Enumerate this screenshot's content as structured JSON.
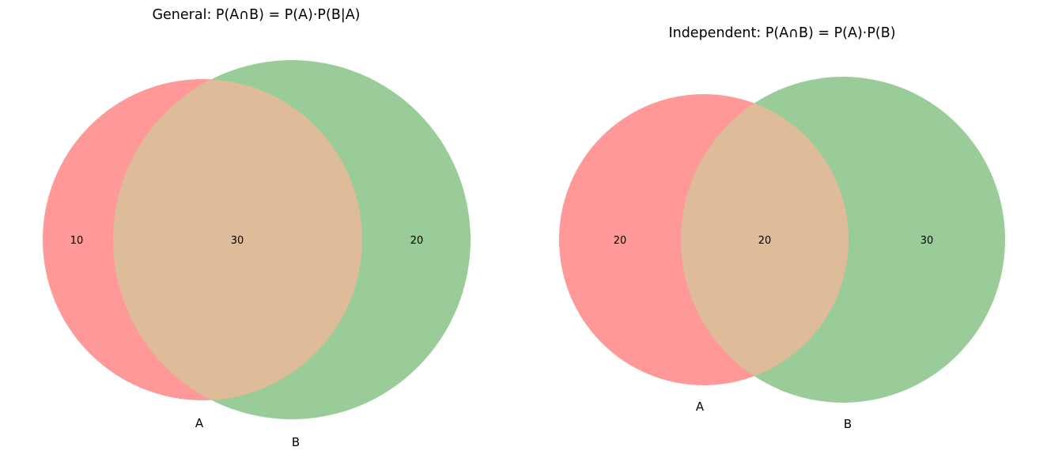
{
  "colors": {
    "set_a": "#ff9999",
    "set_b": "#99cc99",
    "overlap": "#dfbc99"
  },
  "diagrams": [
    {
      "title": "General: P(A∩B) = P(A)·P(B|A)",
      "set_labels": [
        "A",
        "B"
      ],
      "regions": {
        "a_only": "10",
        "intersection": "30",
        "b_only": "20"
      }
    },
    {
      "title": "Independent: P(A∩B) = P(A)·P(B)",
      "set_labels": [
        "A",
        "B"
      ],
      "regions": {
        "a_only": "20",
        "intersection": "20",
        "b_only": "30"
      }
    }
  ]
}
